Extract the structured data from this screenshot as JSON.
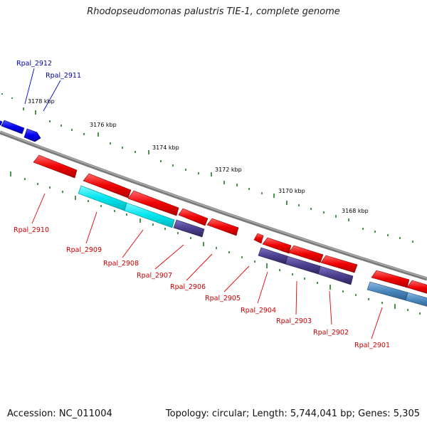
{
  "title": "Rhodopseudomonas palustris TIE-1, complete genome",
  "footer": {
    "accession": "Accession: NC_011004",
    "topology": "Topology: circular; Length: 5,744,041 bp; Genes: 5,305"
  },
  "colors": {
    "backbone": "#888888",
    "tick": "#1e7a1e",
    "forward_gene": "#0000ee",
    "reverse_gene": "#ee0000",
    "feature_cyan": "#00e5ee",
    "feature_purple": "#4b3f8f",
    "feature_steel": "#4a86bd",
    "label_forward": "#0000aa",
    "label_reverse": "#cc0000"
  },
  "ticks": [
    {
      "label": "3178 kbp"
    },
    {
      "label": "3176 kbp"
    },
    {
      "label": "3174 kbp"
    },
    {
      "label": "3172 kbp"
    },
    {
      "label": "3170 kbp"
    },
    {
      "label": "3168 kbp"
    }
  ],
  "genes_forward": [
    {
      "name": "Rpal_2912"
    },
    {
      "name": "Rpal_2911"
    }
  ],
  "genes_reverse": [
    {
      "name": "Rpal_2910"
    },
    {
      "name": "Rpal_2909"
    },
    {
      "name": "Rpal_2908"
    },
    {
      "name": "Rpal_2907"
    },
    {
      "name": "Rpal_2906"
    },
    {
      "name": "Rpal_2905"
    },
    {
      "name": "Rpal_2904"
    },
    {
      "name": "Rpal_2903"
    },
    {
      "name": "Rpal_2902"
    },
    {
      "name": "Rpal_2901"
    }
  ]
}
